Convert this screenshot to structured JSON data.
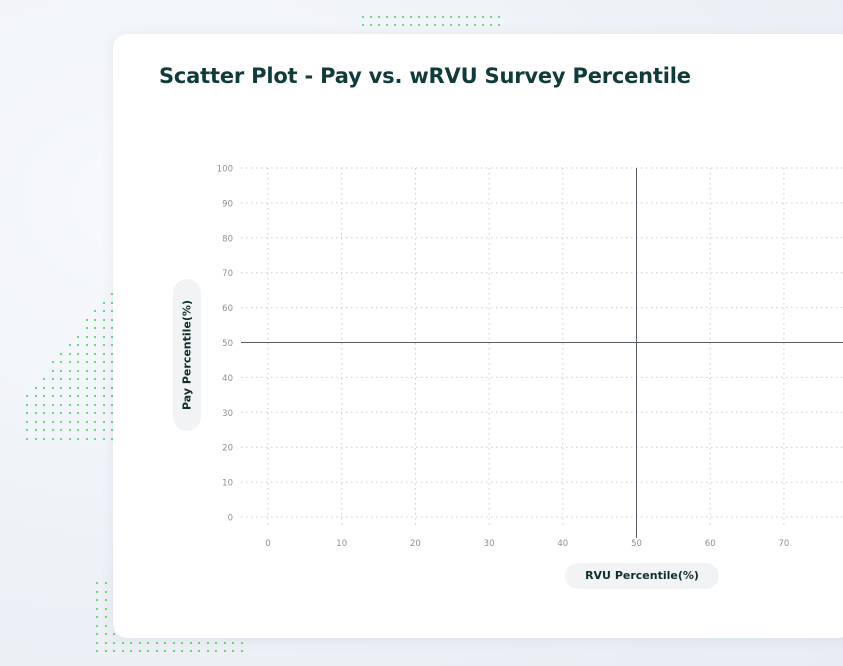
{
  "title": "Scatter Plot - Pay vs. wRVU Survey Percentile",
  "colors": {
    "background": "#eef2f7",
    "card": "#ffffff",
    "title": "#0f3b3a",
    "grid": "#c9ced4",
    "reference_line": "#555c63",
    "tick_text": "#8a9097",
    "decor_dots": "#39d353"
  },
  "chart_data": {
    "type": "scatter",
    "title": "Scatter Plot - Pay vs. wRVU Survey Percentile",
    "xlabel": "RVU Percentile(%)",
    "ylabel": "Pay Percentile(%)",
    "xlim": [
      0,
      80
    ],
    "ylim": [
      0,
      100
    ],
    "x_ticks": [
      0,
      10,
      20,
      30,
      40,
      50,
      60,
      70
    ],
    "y_ticks": [
      0,
      10,
      20,
      30,
      40,
      50,
      60,
      70,
      80,
      90,
      100
    ],
    "grid": true,
    "grid_style": "dotted",
    "reference_lines": {
      "x": 50,
      "y": 50
    },
    "series": [
      {
        "points": []
      }
    ]
  }
}
